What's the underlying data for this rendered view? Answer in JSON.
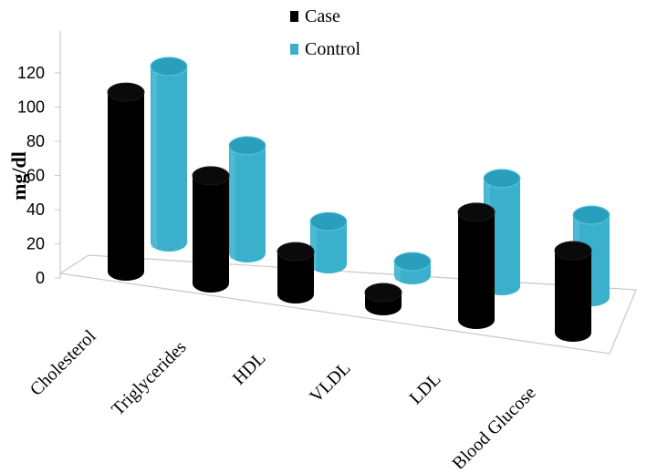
{
  "chart_data": {
    "type": "bar",
    "style": "3d-cylinder",
    "categories": [
      "Cholesterol",
      "Triglycerides",
      "HDL",
      "VLDL",
      "LDL",
      "Blood Glucose"
    ],
    "series": [
      {
        "name": "Case",
        "color": "#000000",
        "values": [
          105,
          63,
          25,
          8,
          63,
          48
        ]
      },
      {
        "name": "Control",
        "color": "#3ab0cc",
        "values": [
          103,
          63,
          25,
          8,
          63,
          48
        ]
      }
    ],
    "ylabel": "mg/dl",
    "xlabel": "",
    "ylim": [
      0,
      120
    ],
    "yticks": [
      "0",
      "20",
      "40",
      "60",
      "80",
      "100",
      "120"
    ],
    "legend_position": "top",
    "grid": false
  }
}
